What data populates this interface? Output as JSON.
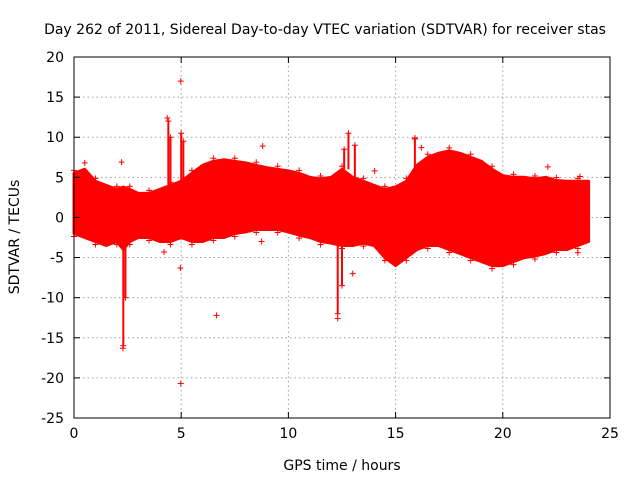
{
  "chart_data": {
    "type": "scatter",
    "title": "Day 262 of 2011, Sidereal Day-to-day VTEC variation (SDTVAR) for receiver stas",
    "xlabel": "GPS time / hours",
    "ylabel": "SDTVAR / TECUs",
    "xlim": [
      0,
      25
    ],
    "ylim": [
      -25,
      20
    ],
    "x_ticks": [
      0,
      5,
      10,
      15,
      20,
      25
    ],
    "y_ticks": [
      -25,
      -20,
      -15,
      -10,
      -5,
      0,
      5,
      10,
      15,
      20
    ],
    "grid": true,
    "marker": "+",
    "series_color": "#ff0000",
    "series": [
      {
        "name": "SDTVAR",
        "band_hours": [
          0,
          0.5,
          1,
          1.5,
          2,
          2.3,
          2.6,
          3,
          3.5,
          4,
          4.5,
          5,
          5.5,
          6,
          6.5,
          7,
          7.5,
          8,
          8.5,
          9,
          9.5,
          10,
          10.5,
          11,
          11.5,
          12,
          12.5,
          13,
          13.5,
          14,
          14.5,
          15,
          15.5,
          16,
          16.5,
          17,
          17.5,
          18,
          18.5,
          19,
          19.5,
          20,
          20.5,
          21,
          21.5,
          22,
          22.5,
          23,
          23.5,
          24
        ],
        "band_upper": [
          5.5,
          6,
          4.5,
          4,
          3.5,
          3.8,
          3.5,
          3,
          3,
          3.5,
          4,
          4.5,
          5.5,
          6.5,
          7,
          7.2,
          7,
          6.8,
          6.5,
          6.2,
          6,
          5.8,
          5.5,
          5,
          4.8,
          5,
          6,
          5,
          4.5,
          4,
          3.5,
          3.8,
          4.5,
          6.5,
          7.5,
          8,
          8.3,
          8,
          7.5,
          7,
          6,
          5.2,
          5,
          5,
          4.8,
          5,
          4.6,
          4.5,
          4.5,
          4.5
        ],
        "band_lower": [
          -2,
          -2.5,
          -3,
          -3.5,
          -3,
          -4,
          -3,
          -2.5,
          -2.5,
          -3,
          -3,
          -2.5,
          -3,
          -3,
          -2.5,
          -2.5,
          -2,
          -1.8,
          -1.5,
          -1.5,
          -1.5,
          -1.8,
          -2.2,
          -2.5,
          -3,
          -3.2,
          -3.5,
          -3.5,
          -3.2,
          -3.5,
          -5,
          -6,
          -5,
          -4,
          -3.5,
          -3.5,
          -4,
          -4.5,
          -5,
          -5.5,
          -6,
          -6,
          -5.5,
          -5,
          -4.8,
          -4.5,
          -4,
          -4,
          -3.5,
          -3
        ],
        "outliers": [
          {
            "x": 4.98,
            "y": 17.0
          },
          {
            "x": 4.98,
            "y": -20.7
          },
          {
            "x": 2.28,
            "y": -16.3
          },
          {
            "x": 2.22,
            "y": 6.9
          },
          {
            "x": 4.96,
            "y": -6.3
          },
          {
            "x": 4.35,
            "y": 12.4
          },
          {
            "x": 6.65,
            "y": -12.2
          },
          {
            "x": 8.8,
            "y": 8.9
          },
          {
            "x": 8.75,
            "y": -3.0
          },
          {
            "x": 12.3,
            "y": -12.6
          },
          {
            "x": 13.0,
            "y": -7.0
          },
          {
            "x": 14.02,
            "y": 5.8
          },
          {
            "x": 15.9,
            "y": 9.9
          },
          {
            "x": 16.2,
            "y": 8.7
          },
          {
            "x": 22.1,
            "y": 6.3
          },
          {
            "x": 23.6,
            "y": 5.1
          },
          {
            "x": 23.5,
            "y": -4.4
          },
          {
            "x": 4.2,
            "y": -4.3
          },
          {
            "x": 0.5,
            "y": 6.8
          }
        ],
        "spikes": [
          {
            "x": 2.3,
            "y0": -3,
            "y1": -16
          },
          {
            "x": 2.4,
            "y0": -3,
            "y1": -10
          },
          {
            "x": 4.4,
            "y0": 4,
            "y1": 12
          },
          {
            "x": 4.5,
            "y0": 4,
            "y1": 10
          },
          {
            "x": 5.0,
            "y0": 4,
            "y1": 10.5
          },
          {
            "x": 5.1,
            "y0": 4,
            "y1": 9.5
          },
          {
            "x": 12.3,
            "y0": -3,
            "y1": -12
          },
          {
            "x": 12.5,
            "y0": -3,
            "y1": -8.5
          },
          {
            "x": 12.8,
            "y0": 6,
            "y1": 10.5
          },
          {
            "x": 12.6,
            "y0": 6,
            "y1": 8.5
          },
          {
            "x": 13.1,
            "y0": 5,
            "y1": 9
          },
          {
            "x": 15.9,
            "y0": 6,
            "y1": 9.8
          }
        ]
      }
    ]
  }
}
